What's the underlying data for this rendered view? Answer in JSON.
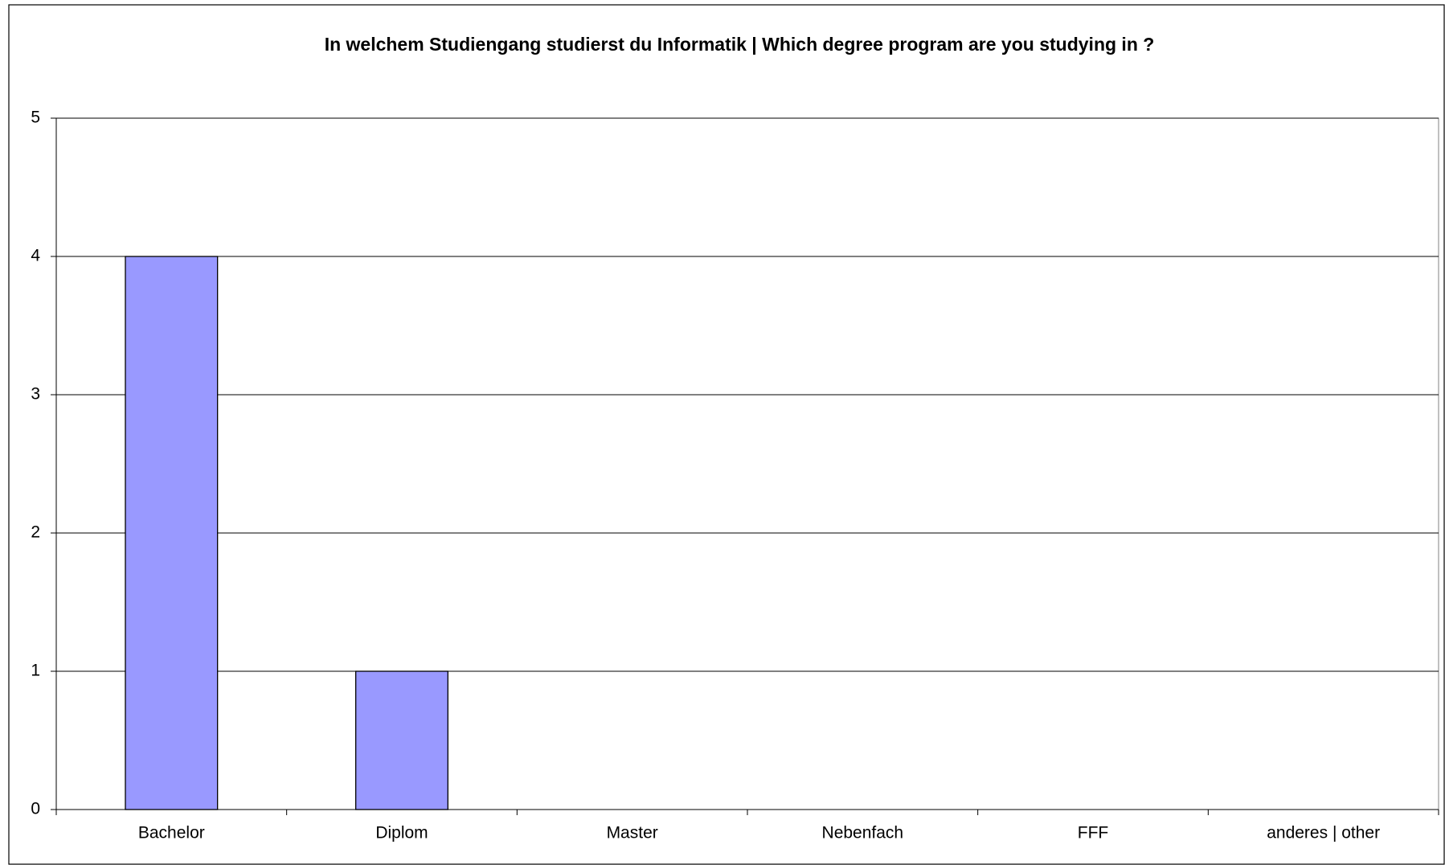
{
  "chart_data": {
    "type": "bar",
    "title": "In welchem Studiengang studierst du Informatik | Which degree program are you studying in ?",
    "categories": [
      "Bachelor",
      "Diplom",
      "Master",
      "Nebenfach",
      "FFF",
      "anderes | other"
    ],
    "values": [
      4,
      1,
      0,
      0,
      0,
      0
    ],
    "color": "#9999ff",
    "ylim": [
      0,
      5
    ],
    "yticks": [
      0,
      1,
      2,
      3,
      4,
      5
    ],
    "grid": true
  }
}
